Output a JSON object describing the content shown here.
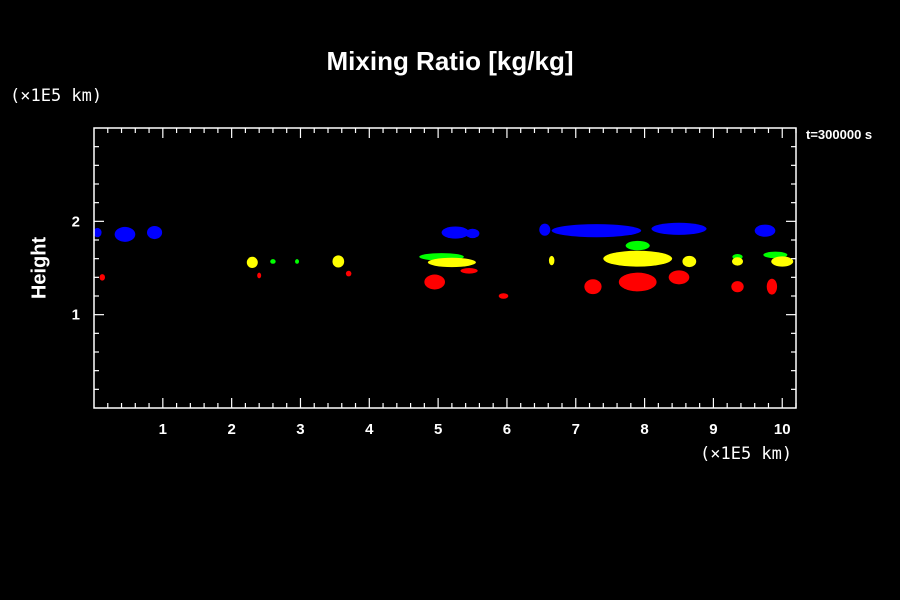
{
  "chart_data": {
    "type": "area",
    "title": "Mixing Ratio [kg/kg]",
    "ylabel": "Height",
    "x_unit": "(×1E5 km)",
    "y_unit": "(×1E5 km)",
    "time_label": "t=300000 s",
    "xlim": [
      0,
      10.2
    ],
    "ylim": [
      0,
      3
    ],
    "x_ticks": [
      1,
      2,
      3,
      4,
      5,
      6,
      7,
      8,
      9,
      10
    ],
    "y_ticks": [
      1,
      2
    ],
    "series": [
      {
        "color": "#0000ff",
        "blobs": [
          {
            "x": 0.05,
            "y": 1.88,
            "w": 0.12,
            "h": 0.1
          },
          {
            "x": 0.45,
            "y": 1.86,
            "w": 0.3,
            "h": 0.16
          },
          {
            "x": 0.88,
            "y": 1.88,
            "w": 0.22,
            "h": 0.14
          },
          {
            "x": 5.25,
            "y": 1.88,
            "w": 0.4,
            "h": 0.13
          },
          {
            "x": 5.5,
            "y": 1.87,
            "w": 0.2,
            "h": 0.1
          },
          {
            "x": 6.55,
            "y": 1.91,
            "w": 0.16,
            "h": 0.13
          },
          {
            "x": 7.3,
            "y": 1.9,
            "w": 1.3,
            "h": 0.14
          },
          {
            "x": 8.5,
            "y": 1.92,
            "w": 0.8,
            "h": 0.13
          },
          {
            "x": 9.75,
            "y": 1.9,
            "w": 0.3,
            "h": 0.13
          }
        ]
      },
      {
        "color": "#00ff00",
        "blobs": [
          {
            "x": 2.6,
            "y": 1.57,
            "w": 0.08,
            "h": 0.05
          },
          {
            "x": 2.95,
            "y": 1.57,
            "w": 0.05,
            "h": 0.05
          },
          {
            "x": 5.05,
            "y": 1.62,
            "w": 0.65,
            "h": 0.08
          },
          {
            "x": 7.9,
            "y": 1.74,
            "w": 0.35,
            "h": 0.1
          },
          {
            "x": 9.35,
            "y": 1.62,
            "w": 0.15,
            "h": 0.06
          },
          {
            "x": 9.9,
            "y": 1.64,
            "w": 0.35,
            "h": 0.07
          }
        ]
      },
      {
        "color": "#ffff00",
        "blobs": [
          {
            "x": 2.3,
            "y": 1.56,
            "w": 0.16,
            "h": 0.12
          },
          {
            "x": 3.55,
            "y": 1.57,
            "w": 0.17,
            "h": 0.13
          },
          {
            "x": 5.2,
            "y": 1.56,
            "w": 0.7,
            "h": 0.1
          },
          {
            "x": 6.65,
            "y": 1.58,
            "w": 0.08,
            "h": 0.1
          },
          {
            "x": 7.9,
            "y": 1.6,
            "w": 1.0,
            "h": 0.17
          },
          {
            "x": 8.65,
            "y": 1.57,
            "w": 0.2,
            "h": 0.12
          },
          {
            "x": 9.35,
            "y": 1.57,
            "w": 0.16,
            "h": 0.09
          },
          {
            "x": 10.0,
            "y": 1.57,
            "w": 0.32,
            "h": 0.11
          }
        ]
      },
      {
        "color": "#ff0000",
        "blobs": [
          {
            "x": 0.12,
            "y": 1.4,
            "w": 0.08,
            "h": 0.07
          },
          {
            "x": 2.4,
            "y": 1.42,
            "w": 0.05,
            "h": 0.06
          },
          {
            "x": 3.7,
            "y": 1.44,
            "w": 0.08,
            "h": 0.06
          },
          {
            "x": 4.95,
            "y": 1.35,
            "w": 0.3,
            "h": 0.16
          },
          {
            "x": 5.45,
            "y": 1.47,
            "w": 0.25,
            "h": 0.06
          },
          {
            "x": 5.95,
            "y": 1.2,
            "w": 0.14,
            "h": 0.06
          },
          {
            "x": 7.25,
            "y": 1.3,
            "w": 0.25,
            "h": 0.16
          },
          {
            "x": 7.9,
            "y": 1.35,
            "w": 0.55,
            "h": 0.2
          },
          {
            "x": 8.5,
            "y": 1.4,
            "w": 0.3,
            "h": 0.15
          },
          {
            "x": 9.35,
            "y": 1.3,
            "w": 0.18,
            "h": 0.12
          },
          {
            "x": 9.85,
            "y": 1.3,
            "w": 0.15,
            "h": 0.17
          }
        ]
      }
    ]
  }
}
